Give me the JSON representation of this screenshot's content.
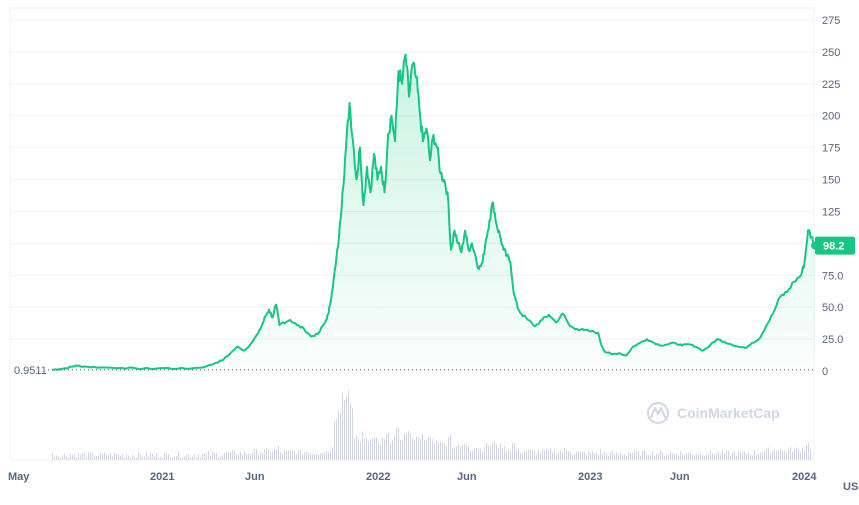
{
  "chart_data": {
    "type": "area",
    "y_unit": "USD",
    "ylim": [
      0,
      275
    ],
    "y_ticks": [
      "275",
      "250",
      "225",
      "200",
      "175",
      "150",
      "125",
      "100",
      "75.0",
      "50.0",
      "25.0",
      "0"
    ],
    "x_ticks": [
      "May",
      "2021",
      "Jun",
      "2022",
      "Jun",
      "2023",
      "Jun",
      "2024"
    ],
    "min_label": "0.9511",
    "current_label": "98.2",
    "watermark": "CoinMarketCap",
    "colors": {
      "line": "#16c784",
      "fill": "#16c784",
      "badge": "#16c784",
      "volume": "#cfd6e4",
      "grid": "#eff2f5",
      "axis_text": "#58667e"
    },
    "grid": true,
    "series": [
      {
        "values": [
          [
            0,
            0.95
          ],
          [
            0.01,
            1.5
          ],
          [
            0.02,
            2.2
          ],
          [
            0.03,
            3.5
          ],
          [
            0.035,
            4.2
          ],
          [
            0.05,
            3.3
          ],
          [
            0.07,
            2.8
          ],
          [
            0.1,
            2.4
          ],
          [
            0.12,
            2.0
          ],
          [
            0.14,
            1.8
          ],
          [
            0.16,
            2.3
          ],
          [
            0.18,
            1.9
          ],
          [
            0.2,
            2.0
          ],
          [
            0.22,
            3.5
          ],
          [
            0.235,
            6.5
          ],
          [
            0.245,
            9.0
          ],
          [
            0.255,
            14.0
          ],
          [
            0.265,
            19.0
          ],
          [
            0.275,
            16.0
          ],
          [
            0.285,
            22.0
          ],
          [
            0.295,
            30.0
          ],
          [
            0.3,
            36.0
          ],
          [
            0.305,
            43.0
          ],
          [
            0.31,
            48.0
          ],
          [
            0.315,
            42.0
          ],
          [
            0.32,
            52.0
          ],
          [
            0.325,
            36.0
          ],
          [
            0.33,
            38.0
          ],
          [
            0.34,
            40.0
          ],
          [
            0.35,
            36.0
          ],
          [
            0.36,
            33.0
          ],
          [
            0.37,
            27.0
          ],
          [
            0.38,
            29.0
          ],
          [
            0.39,
            38.0
          ],
          [
            0.395,
            45.0
          ],
          [
            0.4,
            62.0
          ],
          [
            0.405,
            82.0
          ],
          [
            0.41,
            105.0
          ],
          [
            0.415,
            140.0
          ],
          [
            0.42,
            175.0
          ],
          [
            0.425,
            210.0
          ],
          [
            0.43,
            180.0
          ],
          [
            0.435,
            150.0
          ],
          [
            0.44,
            175.0
          ],
          [
            0.445,
            130.0
          ],
          [
            0.45,
            160.0
          ],
          [
            0.455,
            140.0
          ],
          [
            0.46,
            170.0
          ],
          [
            0.465,
            150.0
          ],
          [
            0.47,
            160.0
          ],
          [
            0.475,
            140.0
          ],
          [
            0.48,
            185.0
          ],
          [
            0.485,
            200.0
          ],
          [
            0.49,
            180.0
          ],
          [
            0.495,
            235.0
          ],
          [
            0.5,
            225.0
          ],
          [
            0.505,
            248.0
          ],
          [
            0.51,
            215.0
          ],
          [
            0.515,
            240.0
          ],
          [
            0.52,
            230.0
          ],
          [
            0.525,
            205.0
          ],
          [
            0.53,
            180.0
          ],
          [
            0.535,
            190.0
          ],
          [
            0.54,
            165.0
          ],
          [
            0.545,
            185.0
          ],
          [
            0.55,
            175.0
          ],
          [
            0.555,
            155.0
          ],
          [
            0.56,
            150.0
          ],
          [
            0.565,
            140.0
          ],
          [
            0.57,
            95.0
          ],
          [
            0.575,
            110.0
          ],
          [
            0.58,
            100.0
          ],
          [
            0.585,
            93.0
          ],
          [
            0.59,
            110.0
          ],
          [
            0.595,
            95.0
          ],
          [
            0.6,
            100.0
          ],
          [
            0.605,
            90.0
          ],
          [
            0.61,
            80.0
          ],
          [
            0.615,
            85.0
          ],
          [
            0.62,
            103.0
          ],
          [
            0.625,
            118.0
          ],
          [
            0.63,
            132.0
          ],
          [
            0.635,
            115.0
          ],
          [
            0.64,
            106.0
          ],
          [
            0.645,
            95.0
          ],
          [
            0.65,
            90.0
          ],
          [
            0.655,
            85.0
          ],
          [
            0.66,
            60.0
          ],
          [
            0.665,
            50.0
          ],
          [
            0.67,
            45.0
          ],
          [
            0.68,
            40.0
          ],
          [
            0.69,
            35.0
          ],
          [
            0.7,
            40.0
          ],
          [
            0.71,
            44.0
          ],
          [
            0.72,
            38.0
          ],
          [
            0.73,
            45.0
          ],
          [
            0.74,
            35.0
          ],
          [
            0.75,
            33.0
          ],
          [
            0.76,
            32.0
          ],
          [
            0.77,
            31.0
          ],
          [
            0.78,
            30.0
          ],
          [
            0.785,
            20.0
          ],
          [
            0.79,
            15.0
          ],
          [
            0.8,
            13.0
          ],
          [
            0.81,
            14.0
          ],
          [
            0.82,
            12.0
          ],
          [
            0.83,
            19.0
          ],
          [
            0.84,
            22.0
          ],
          [
            0.85,
            25.0
          ],
          [
            0.86,
            22.0
          ],
          [
            0.87,
            20.0
          ],
          [
            0.88,
            21.0
          ],
          [
            0.89,
            22.0
          ],
          [
            0.9,
            20.0
          ],
          [
            0.91,
            21.0
          ],
          [
            0.92,
            19.0
          ],
          [
            0.93,
            16.0
          ],
          [
            0.94,
            20.0
          ],
          [
            0.95,
            25.0
          ],
          [
            0.96,
            23.0
          ],
          [
            0.97,
            21.0
          ],
          [
            0.98,
            19.0
          ],
          [
            0.99,
            18.0
          ],
          [
            1.0,
            22.0
          ],
          [
            1.01,
            25.0
          ],
          [
            1.02,
            35.0
          ],
          [
            1.03,
            45.0
          ],
          [
            1.04,
            58.0
          ],
          [
            1.05,
            62.0
          ],
          [
            1.06,
            70.0
          ],
          [
            1.07,
            75.0
          ],
          [
            1.075,
            85.0
          ],
          [
            1.08,
            110.0
          ],
          [
            1.085,
            105.0
          ],
          [
            1.09,
            98.2
          ]
        ]
      }
    ]
  }
}
